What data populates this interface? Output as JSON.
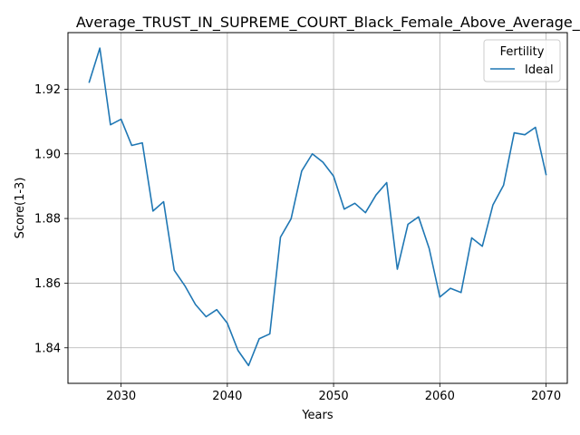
{
  "chart_data": {
    "type": "line",
    "title": "Average_TRUST_IN_SUPREME_COURT_Black_Female_Above_Average_IQ",
    "xlabel": "Years",
    "ylabel": "Score(1-3)",
    "xlim": [
      2025,
      2072
    ],
    "ylim": [
      1.829,
      1.9375
    ],
    "xticks": [
      2030,
      2040,
      2050,
      2060,
      2070
    ],
    "yticks": [
      1.84,
      1.86,
      1.88,
      1.9,
      1.92
    ],
    "ytick_labels": [
      "1.84",
      "1.86",
      "1.88",
      "1.90",
      "1.92"
    ],
    "grid": true,
    "legend": {
      "title": "Fertility",
      "location": "upper right"
    },
    "series": [
      {
        "name": "Ideal",
        "color": "#1f77b4",
        "x": [
          2027,
          2028,
          2029,
          2030,
          2031,
          2032,
          2033,
          2034,
          2035,
          2036,
          2037,
          2038,
          2039,
          2040,
          2041,
          2042,
          2043,
          2044,
          2045,
          2046,
          2047,
          2048,
          2049,
          2050,
          2051,
          2052,
          2053,
          2054,
          2055,
          2056,
          2057,
          2058,
          2059,
          2060,
          2061,
          2062,
          2063,
          2064,
          2065,
          2066,
          2067,
          2068,
          2069,
          2070
        ],
        "y": [
          1.9222,
          1.9327,
          1.909,
          1.9107,
          1.9026,
          1.9034,
          1.8823,
          1.8852,
          1.864,
          1.8592,
          1.8534,
          1.8496,
          1.8518,
          1.8476,
          1.8392,
          1.8345,
          1.8428,
          1.8443,
          1.8742,
          1.8799,
          1.8947,
          1.9,
          1.8974,
          1.8931,
          1.8829,
          1.8847,
          1.8818,
          1.8873,
          1.8911,
          1.8643,
          1.8782,
          1.8805,
          1.8707,
          1.8557,
          1.8584,
          1.8571,
          1.874,
          1.8714,
          1.8842,
          1.8903,
          1.9065,
          1.9059,
          1.9082,
          1.8936
        ]
      }
    ]
  }
}
